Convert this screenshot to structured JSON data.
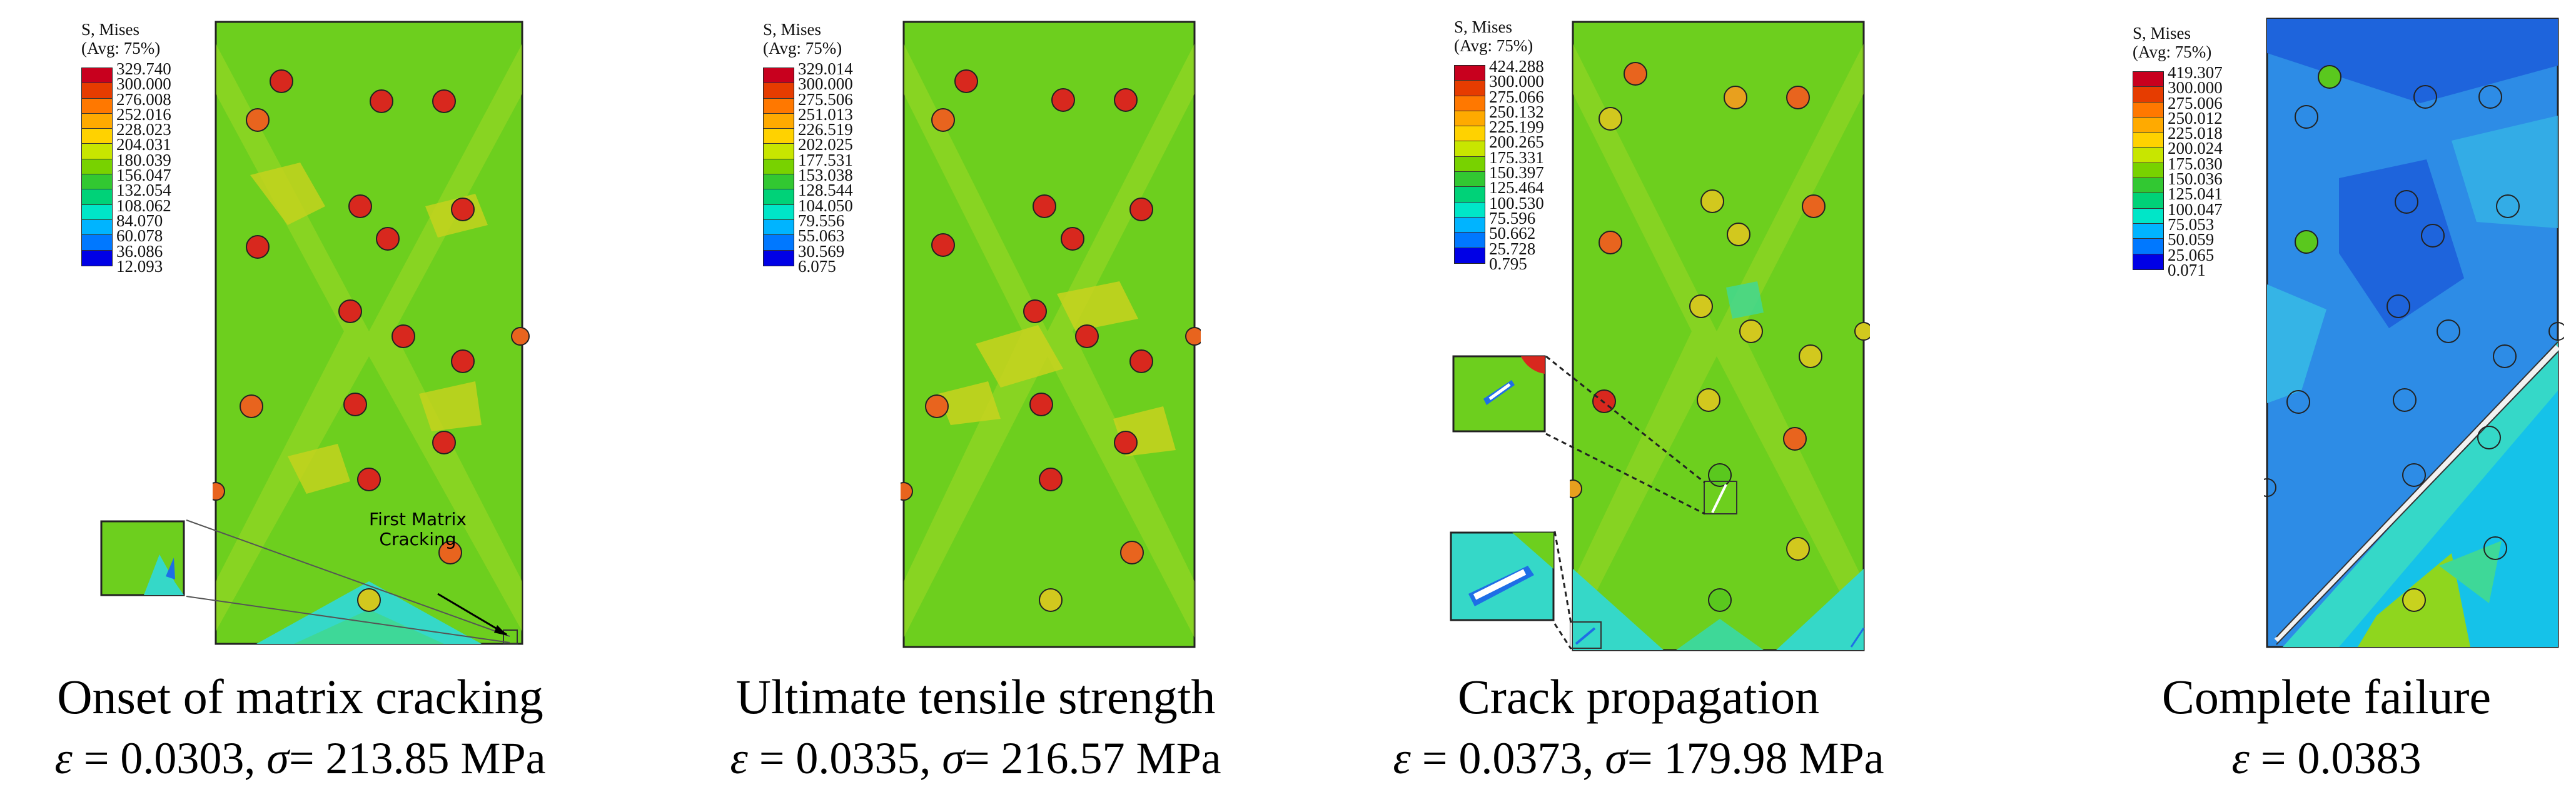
{
  "legend_title": "S, Mises\n(Avg: 75%)",
  "legend_colors": [
    "#c8001e",
    "#e63c00",
    "#ff7800",
    "#ffaa00",
    "#ffd200",
    "#c8e600",
    "#78d200",
    "#32c832",
    "#00d278",
    "#00e6c8",
    "#00b4ff",
    "#0078ff",
    "#0000e6"
  ],
  "field_colors": {
    "base": "#6dcf1e",
    "light": "#a8d926",
    "yellow": "#c8d21e",
    "teal": "#3ed898",
    "cyan": "#35d8c8",
    "blue_field": "#1e6ee6",
    "blue_mid": "#2da0e6",
    "fiber_red": "#d8281e",
    "fiber_orange": "#e8641e",
    "fiber_yellow": "#d2c81e",
    "fiber_green": "#5ac81e"
  },
  "panels": [
    {
      "id": "onset",
      "legend_values": [
        "329.740",
        "300.000",
        "276.008",
        "252.016",
        "228.023",
        "204.031",
        "180.039",
        "156.047",
        "132.054",
        "108.062",
        "84.070",
        "60.078",
        "36.086",
        "12.093"
      ],
      "caption_title": "Onset of matrix cracking",
      "caption_values_text": "= 0.0303, ",
      "caption_eps": "ε",
      "caption_sigma": "σ",
      "caption_sigma_value": "= 213.85 MPa",
      "annotation": "First Matrix\nCracking"
    },
    {
      "id": "uts",
      "legend_values": [
        "329.014",
        "300.000",
        "275.506",
        "251.013",
        "226.519",
        "202.025",
        "177.531",
        "153.038",
        "128.544",
        "104.050",
        "79.556",
        "55.063",
        "30.569",
        "6.075"
      ],
      "caption_title": "Ultimate tensile strength",
      "caption_values_text": "= 0.0335, ",
      "caption_eps": "ε",
      "caption_sigma": "σ",
      "caption_sigma_value": "= 216.57 MPa"
    },
    {
      "id": "crack",
      "legend_values": [
        "424.288",
        "300.000",
        "275.066",
        "250.132",
        "225.199",
        "200.265",
        "175.331",
        "150.397",
        "125.464",
        "100.530",
        "75.596",
        "50.662",
        "25.728",
        "0.795"
      ],
      "caption_title": "Crack propagation",
      "caption_values_text": "= 0.0373, ",
      "caption_eps": "ε",
      "caption_sigma": "σ",
      "caption_sigma_value": "= 179.98 MPa"
    },
    {
      "id": "failure",
      "legend_values": [
        "419.307",
        "300.000",
        "275.006",
        "250.012",
        "225.018",
        "200.024",
        "175.030",
        "150.036",
        "125.041",
        "100.047",
        "75.053",
        "50.059",
        "25.065",
        "0.071"
      ],
      "caption_title": "Complete failure",
      "caption_eps": "ε",
      "caption_values_text": "= 0.0383"
    }
  ]
}
